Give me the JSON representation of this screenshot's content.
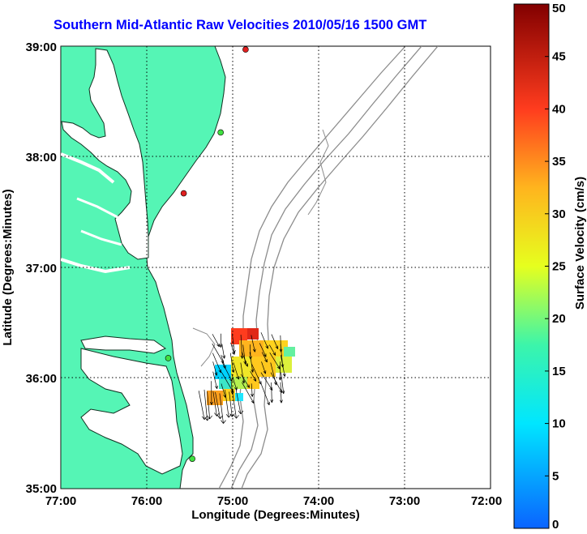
{
  "title": "Southern Mid-Atlantic Raw Velocities 2010/05/16 1500 GMT",
  "xlabel": "Longitude (Degrees:Minutes)",
  "ylabel": "Latitude (Degrees:Minutes)",
  "x_ticks": [
    "77:00",
    "76:00",
    "75:00",
    "74:00",
    "73:00",
    "72:00"
  ],
  "y_ticks": [
    "39:00",
    "38:00",
    "37:00",
    "36:00",
    "35:00"
  ],
  "colorbar": {
    "label": "Surface Velocity (cm/s)",
    "ticks": [
      "0",
      "5",
      "10",
      "15",
      "20",
      "25",
      "30",
      "35",
      "40",
      "45",
      "50"
    ],
    "range": [
      0,
      50
    ]
  },
  "colors": {
    "land": "#55f5b5",
    "grid": "#000000",
    "bathymetry": "#8c8c8c",
    "title": "#0000ff"
  },
  "extent": {
    "lon": [
      -77,
      -72
    ],
    "lat": [
      35,
      39
    ]
  },
  "stations": [
    {
      "lon": -74.85,
      "lat": 38.97,
      "status": "active",
      "color": "#e02020"
    },
    {
      "lon": -75.14,
      "lat": 38.22,
      "status": "active",
      "color": "#40e040"
    },
    {
      "lon": -75.57,
      "lat": 37.67,
      "status": "active",
      "color": "#e02020"
    },
    {
      "lon": -75.75,
      "lat": 36.18,
      "status": "active",
      "color": "#40e040"
    },
    {
      "lon": -75.47,
      "lat": 35.27,
      "status": "active",
      "color": "#40e040"
    }
  ]
}
